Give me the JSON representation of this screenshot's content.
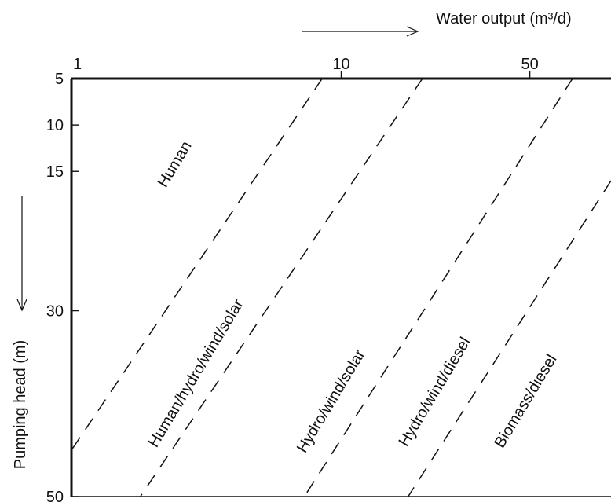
{
  "chart_data": {
    "type": "line",
    "title": "",
    "xlabel": "Water output (m³/d)",
    "ylabel": "Pumping head (m)",
    "x_scale": "log",
    "y_scale": "linear",
    "xlim": [
      1,
      100
    ],
    "ylim": [
      5,
      50
    ],
    "y_inverted": true,
    "x_axis_position": "top",
    "grid": false,
    "x_ticks": [
      {
        "value": 1,
        "label": "1"
      },
      {
        "value": 10,
        "label": "10"
      },
      {
        "value": 50,
        "label": "50"
      }
    ],
    "y_ticks": [
      {
        "value": 5,
        "label": "5"
      },
      {
        "value": 10,
        "label": "10"
      },
      {
        "value": 15,
        "label": "15"
      },
      {
        "value": 30,
        "label": "30"
      },
      {
        "value": 50,
        "label": "50"
      }
    ],
    "boundaries": [
      {
        "points": [
          {
            "x": 8.5,
            "y": 5
          },
          {
            "x": 1.0,
            "y": 45
          }
        ]
      },
      {
        "points": [
          {
            "x": 20,
            "y": 5
          },
          {
            "x": 1.8,
            "y": 50
          }
        ]
      },
      {
        "points": [
          {
            "x": 72,
            "y": 5
          },
          {
            "x": 7.3,
            "y": 50
          }
        ]
      },
      {
        "points": [
          {
            "x": 100,
            "y": 16
          },
          {
            "x": 17.7,
            "y": 50
          }
        ]
      }
    ],
    "regions": [
      {
        "label": "Human",
        "x": 2.5,
        "y": 14.5
      },
      {
        "label": "Human/hydro/wind/solar",
        "x": 3.0,
        "y": 37
      },
      {
        "label": "Hydro/wind/solar",
        "x": 9.5,
        "y": 40
      },
      {
        "label": "Hydro/wind/diesel",
        "x": 23,
        "y": 39
      },
      {
        "label": "Biomass/diesel",
        "x": 50,
        "y": 40
      }
    ]
  }
}
